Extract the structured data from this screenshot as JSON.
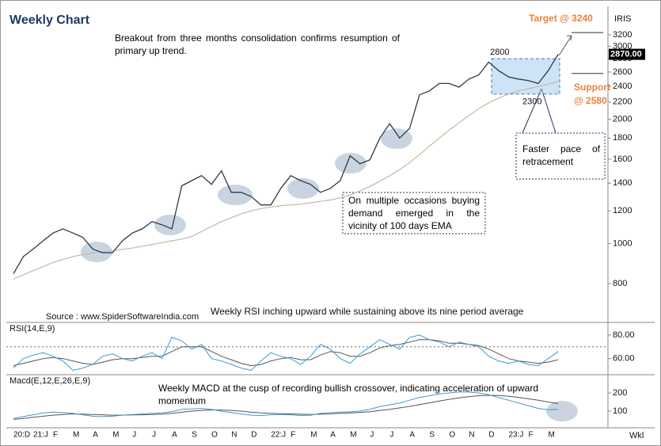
{
  "chart_data": {
    "type": "line",
    "title": "Weekly Chart",
    "symbol": "IRIS",
    "frequency": "Wkl",
    "source": "Source : www.SpiderSoftwareIndia.com",
    "notes": {
      "breakout": "Breakout from three months consolidation confirms resumption of primary up trend.",
      "ema": "On multiple occasions buying demand emerged in the vicinity of 100 days EMA",
      "retracement": "Faster pace of retracement",
      "rsi": "Weekly RSI inching upward while sustaining above its nine period average",
      "macd": "Weekly MACD at the cusp of recording bullish crossover, indicating acceleration of upward momentum"
    },
    "target_text": "Target @ 3240",
    "target_level": 3240,
    "support_text": [
      "Support",
      "@ 2580"
    ],
    "support_level": 2580,
    "box_high": 2800,
    "box_low": 2300,
    "last_label": "2870.00",
    "categories": [
      "20:D",
      null,
      "21:J",
      null,
      "F",
      null,
      "M",
      null,
      "A",
      null,
      "M",
      null,
      "J",
      null,
      "J",
      null,
      "A",
      null,
      "S",
      null,
      "O",
      null,
      "N",
      null,
      "D",
      null,
      "22:J",
      null,
      "F",
      null,
      "M",
      null,
      "A",
      null,
      "M",
      null,
      "J",
      null,
      "J",
      null,
      "A",
      null,
      "S",
      null,
      "O",
      null,
      "N",
      null,
      "D",
      null,
      "23:J",
      null,
      "F",
      null,
      "M",
      null
    ],
    "log_scale": true,
    "ylim": [
      650,
      3750
    ],
    "yticks": [
      800,
      1000,
      1200,
      1400,
      1600,
      1800,
      2000,
      2200,
      2400,
      2600,
      2800,
      3000,
      3200
    ],
    "price": {
      "color": "#2b3a4a",
      "values": [
        845,
        930,
        970,
        1015,
        1060,
        1085,
        1060,
        1035,
        970,
        950,
        950,
        1015,
        1060,
        1085,
        1130,
        1110,
        1085,
        1380,
        1420,
        1460,
        1390,
        1500,
        1330,
        1330,
        1300,
        1240,
        1240,
        1360,
        1460,
        1420,
        1390,
        1330,
        1360,
        1420,
        1630,
        1560,
        1595,
        1800,
        1950,
        1800,
        1900,
        2290,
        2340,
        2440,
        2440,
        2390,
        2500,
        2560,
        2750,
        2620,
        2530,
        2500,
        2480,
        2440,
        2620,
        2870
      ]
    },
    "ema": {
      "color": "#c8b8a0",
      "values": [
        820,
        840,
        860,
        880,
        900,
        915,
        930,
        940,
        950,
        955,
        960,
        968,
        975,
        985,
        995,
        1005,
        1015,
        1025,
        1040,
        1070,
        1100,
        1130,
        1155,
        1180,
        1200,
        1215,
        1225,
        1235,
        1240,
        1245,
        1255,
        1265,
        1275,
        1290,
        1310,
        1340,
        1375,
        1415,
        1460,
        1510,
        1570,
        1640,
        1720,
        1800,
        1880,
        1960,
        2040,
        2120,
        2190,
        2250,
        2300,
        2340,
        2370,
        2400,
        2430,
        2470
      ]
    },
    "rsi": {
      "title": "RSI(14,E,9)",
      "ylim": [
        47,
        90
      ],
      "yticks": [
        {
          "value": 80,
          "label": "80.00"
        },
        {
          "value": 60,
          "label": "60.00"
        }
      ],
      "reference": 70,
      "color": "#3a9ad9",
      "avg_color": "#555555",
      "values": [
        52,
        60,
        63,
        65,
        62,
        58,
        50,
        52,
        55,
        62,
        64,
        60,
        58,
        62,
        65,
        60,
        78,
        75,
        68,
        72,
        60,
        58,
        55,
        52,
        50,
        58,
        65,
        62,
        60,
        55,
        62,
        72,
        68,
        60,
        56,
        64,
        70,
        76,
        72,
        68,
        78,
        80,
        76,
        74,
        70,
        74,
        72,
        70,
        62,
        58,
        56,
        58,
        55,
        54,
        60,
        66
      ],
      "avg": [
        54,
        56,
        58,
        60,
        61,
        60,
        58,
        56,
        55,
        57,
        59,
        60,
        60,
        61,
        62,
        62,
        66,
        70,
        70,
        70,
        66,
        62,
        59,
        56,
        54,
        55,
        58,
        60,
        61,
        59,
        59,
        63,
        66,
        65,
        62,
        62,
        65,
        69,
        71,
        72,
        74,
        76,
        76,
        75,
        73,
        73,
        72,
        71,
        68,
        64,
        60,
        58,
        57,
        56,
        57,
        59
      ]
    },
    "macd": {
      "title": "Macd(E,12,E,26,E,9)",
      "ylim": [
        13,
        296
      ],
      "yticks": [
        200,
        100
      ],
      "color": "#3a9ad9",
      "signal_color": "#555555",
      "values": [
        60,
        70,
        80,
        90,
        95,
        92,
        88,
        80,
        72,
        70,
        72,
        78,
        82,
        85,
        88,
        90,
        98,
        110,
        112,
        115,
        110,
        100,
        92,
        85,
        78,
        76,
        80,
        82,
        80,
        76,
        78,
        88,
        92,
        95,
        96,
        100,
        110,
        125,
        135,
        145,
        160,
        175,
        185,
        195,
        200,
        205,
        205,
        200,
        190,
        175,
        160,
        145,
        130,
        115,
        108,
        110
      ],
      "signal": [
        55,
        60,
        66,
        72,
        78,
        82,
        85,
        84,
        82,
        80,
        78,
        78,
        79,
        80,
        82,
        84,
        88,
        94,
        100,
        104,
        107,
        106,
        104,
        100,
        95,
        90,
        88,
        86,
        85,
        83,
        82,
        83,
        85,
        88,
        90,
        93,
        97,
        104,
        110,
        118,
        126,
        136,
        146,
        156,
        165,
        173,
        180,
        185,
        187,
        186,
        182,
        176,
        168,
        160,
        150,
        142
      ]
    }
  }
}
